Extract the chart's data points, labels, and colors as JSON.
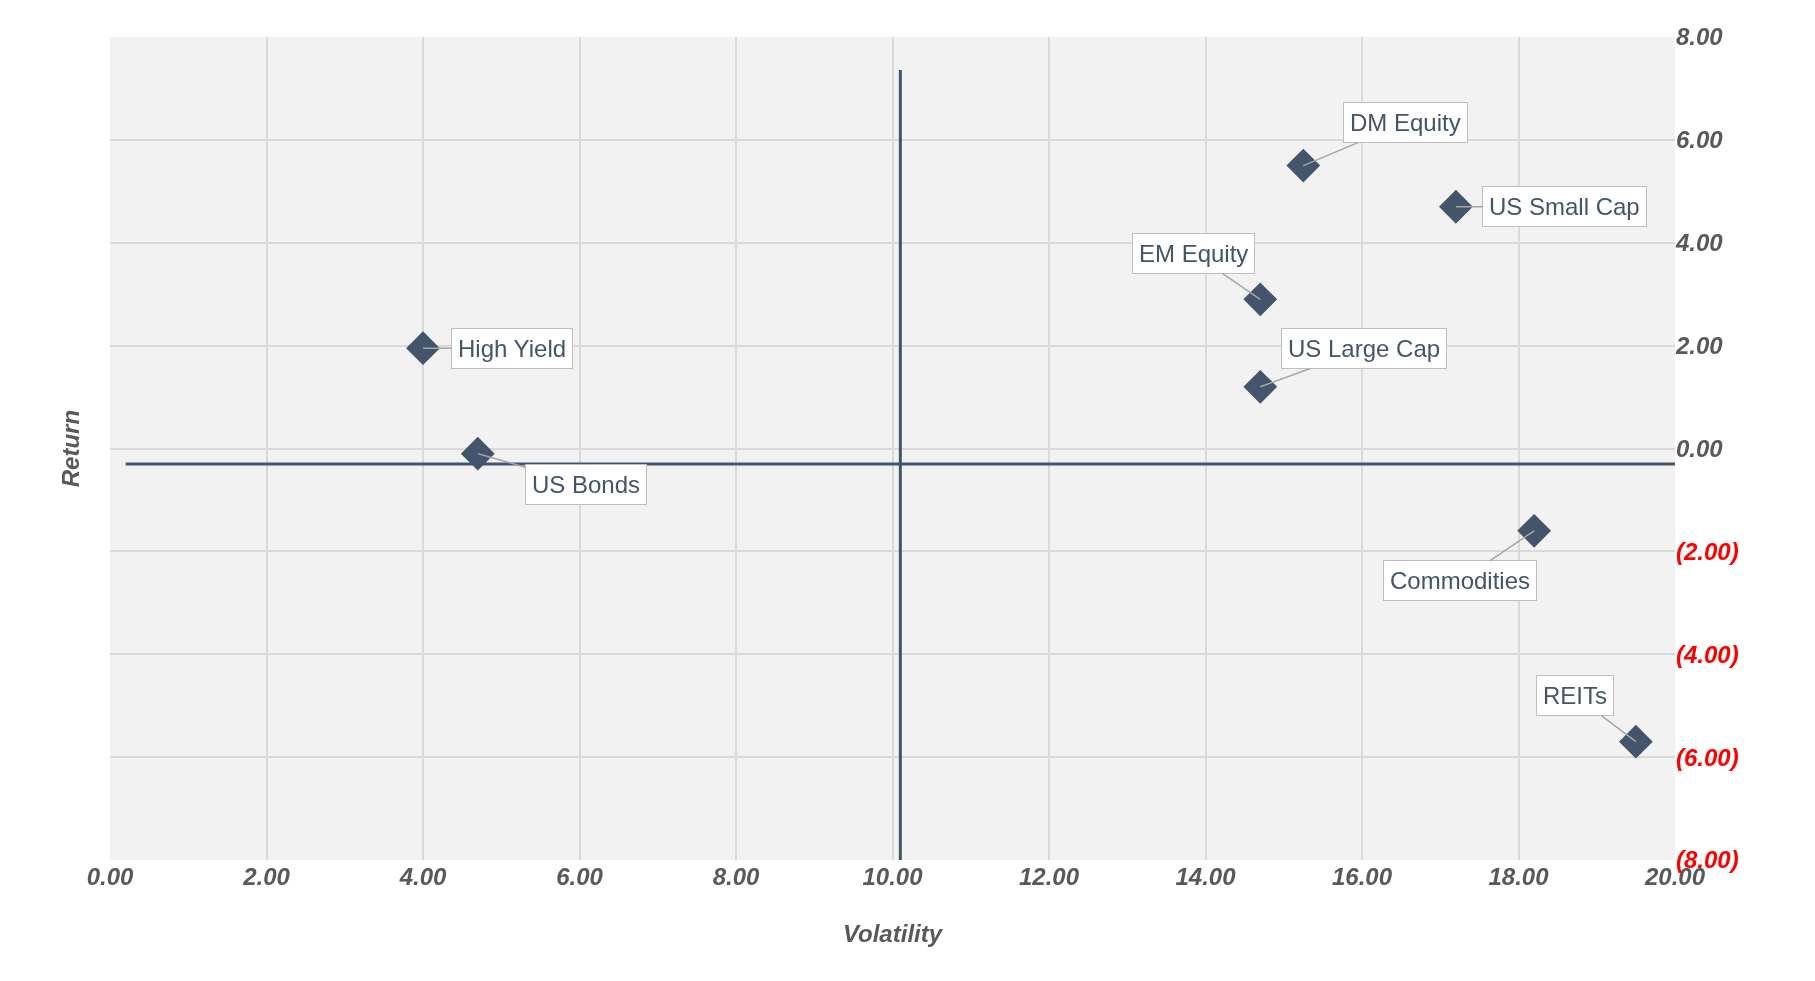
{
  "chart_data": {
    "type": "scatter",
    "xlabel": "Volatility",
    "ylabel": "Return",
    "series": [
      {
        "name": "DM Equity",
        "color": "#44546a",
        "x": [
          15.25
        ],
        "values": [
          5.5
        ]
      },
      {
        "name": "US Small Cap",
        "color": "#44546a",
        "x": [
          17.2
        ],
        "values": [
          4.7
        ]
      },
      {
        "name": "EM Equity",
        "color": "#44546a",
        "x": [
          14.7
        ],
        "values": [
          2.9
        ]
      },
      {
        "name": "US Large Cap",
        "color": "#44546a",
        "x": [
          14.7
        ],
        "values": [
          1.2
        ]
      },
      {
        "name": "High Yield",
        "color": "#44546a",
        "x": [
          4.0
        ],
        "values": [
          1.95
        ]
      },
      {
        "name": "US Bonds",
        "color": "#44546a",
        "x": [
          4.7
        ],
        "values": [
          -0.1
        ]
      },
      {
        "name": "Commodities",
        "color": "#44546a",
        "x": [
          18.2
        ],
        "values": [
          -1.6
        ]
      },
      {
        "name": "REITs",
        "color": "#44546a",
        "x": [
          19.5
        ],
        "values": [
          -5.7
        ]
      }
    ],
    "xlim": [
      0,
      20
    ],
    "xticks": [
      {
        "value": 0,
        "label": "0.00"
      },
      {
        "value": 2,
        "label": "2.00"
      },
      {
        "value": 4,
        "label": "4.00"
      },
      {
        "value": 6,
        "label": "6.00"
      },
      {
        "value": 8,
        "label": "8.00"
      },
      {
        "value": 10,
        "label": "10.00"
      },
      {
        "value": 12,
        "label": "12.00"
      },
      {
        "value": 14,
        "label": "14.00"
      },
      {
        "value": 16,
        "label": "16.00"
      },
      {
        "value": 18,
        "label": "18.00"
      },
      {
        "value": 20,
        "label": "20.00"
      }
    ],
    "ylim": [
      -8,
      8
    ],
    "yticks": [
      {
        "value": -8,
        "label": "(8.00)"
      },
      {
        "value": -6,
        "label": "(6.00)"
      },
      {
        "value": -4,
        "label": "(4.00)"
      },
      {
        "value": -2,
        "label": "(2.00)"
      },
      {
        "value": 0,
        "label": "0.00"
      },
      {
        "value": 2,
        "label": "2.00"
      },
      {
        "value": 4,
        "label": "4.00"
      },
      {
        "value": 6,
        "label": "6.00"
      },
      {
        "value": 8,
        "label": "8.00"
      }
    ],
    "ref_lines": [
      {
        "axis": "x",
        "value": 10.1,
        "color": "#44546a"
      },
      {
        "axis": "y",
        "value": -0.3,
        "color": "#44546a"
      }
    ],
    "grid": true,
    "legend": false,
    "marker": "diamond"
  }
}
